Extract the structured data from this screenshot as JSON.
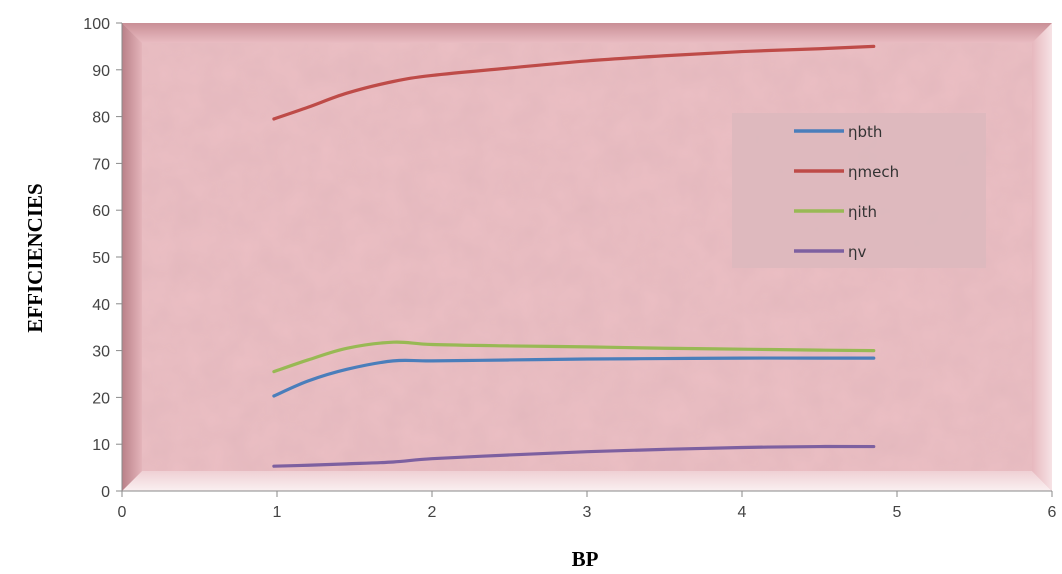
{
  "chart_data": {
    "type": "line",
    "title": "",
    "xlabel": "BP",
    "ylabel": "EFFICIENCIES",
    "xlim": [
      0,
      6
    ],
    "ylim": [
      0,
      100
    ],
    "xticks": [
      "0",
      "1",
      "2",
      "3",
      "4",
      "5",
      "6"
    ],
    "yticks": [
      "0",
      "10",
      "20",
      "30",
      "40",
      "50",
      "60",
      "70",
      "80",
      "90",
      "100"
    ],
    "grid": false,
    "legend_position": "right",
    "x": [
      0.98,
      1.2,
      1.45,
      1.75,
      2.0,
      2.5,
      3.0,
      3.5,
      4.0,
      4.5,
      4.85
    ],
    "series": [
      {
        "name": "ηbth",
        "color": "#4a7ebb",
        "values": [
          20.3,
          23.5,
          26.0,
          27.8,
          27.8,
          28.0,
          28.2,
          28.3,
          28.4,
          28.4,
          28.4
        ]
      },
      {
        "name": "ηmech",
        "color": "#be4b48",
        "values": [
          79.5,
          82.0,
          85.0,
          87.5,
          88.8,
          90.4,
          91.9,
          93.0,
          93.9,
          94.5,
          95.0
        ]
      },
      {
        "name": "ηith",
        "color": "#98b954",
        "values": [
          25.5,
          28.0,
          30.5,
          31.8,
          31.3,
          31.0,
          30.8,
          30.5,
          30.3,
          30.1,
          30.0
        ]
      },
      {
        "name": "ηv",
        "color": "#7d60a0",
        "values": [
          5.3,
          5.5,
          5.8,
          6.2,
          6.9,
          7.7,
          8.4,
          8.9,
          9.3,
          9.5,
          9.5
        ]
      }
    ],
    "plot_area_color": "#ecbfc4"
  }
}
